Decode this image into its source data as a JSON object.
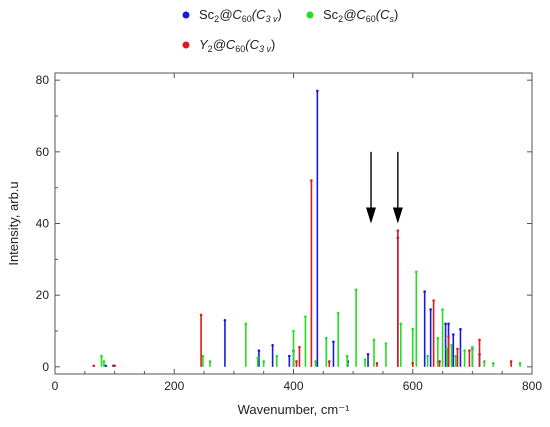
{
  "chart_data": {
    "type": "bar",
    "subtype": "stick-spectrum",
    "xlabel": "Wavenumber, cm⁻¹",
    "ylabel": "Intensity, arb.u",
    "xlim": [
      0,
      800
    ],
    "ylim": [
      -2,
      82
    ],
    "xticks": [
      0,
      200,
      400,
      600,
      800
    ],
    "yticks": [
      0,
      20,
      40,
      60,
      80
    ],
    "grid": false,
    "legend_position": "top",
    "legend": [
      {
        "base": "Sc",
        "sub1": "2",
        "mid": "@C",
        "sub2": "60",
        "open": "(C",
        "sub3": "3 v",
        "close": ")",
        "color": "#1a1adb"
      },
      {
        "base": "Sc",
        "sub1": "2",
        "mid": "@C",
        "sub2": "60",
        "open": "(C",
        "sub3": "s",
        "close": ")",
        "color": "#22dd22"
      },
      {
        "base": "Y",
        "sub1": "2",
        "mid": "@C",
        "sub2": "60",
        "open": "(C",
        "sub3": "3 v",
        "close": ")",
        "color": "#dd1a1a"
      }
    ],
    "annotations": [
      {
        "type": "arrow-down",
        "x": 530,
        "y_top": 60,
        "y_bottom": 40
      },
      {
        "type": "arrow-down",
        "x": 575,
        "y_top": 60,
        "y_bottom": 40
      }
    ],
    "series": [
      {
        "name": "Sc2@C60(C3v)",
        "color": "#1a1adb",
        "x": [
          85,
          98,
          285,
          342,
          365,
          393,
          400,
          440,
          467,
          491,
          525,
          575,
          620,
          630,
          655,
          660,
          668,
          680,
          700,
          712
        ],
        "y": [
          0.3,
          0.3,
          13,
          4.5,
          6,
          3,
          4.5,
          77,
          7,
          1.5,
          3.5,
          36,
          21,
          16,
          12,
          12,
          9,
          10.5,
          5,
          3.5
        ]
      },
      {
        "name": "Sc2@C60(Cs)",
        "color": "#22dd22",
        "x": [
          78,
          82,
          248,
          260,
          320,
          340,
          350,
          372,
          400,
          420,
          437,
          455,
          475,
          490,
          505,
          520,
          535,
          555,
          580,
          600,
          606,
          625,
          642,
          650,
          657,
          665,
          672,
          687,
          700,
          720,
          735,
          780
        ],
        "y": [
          3,
          1.5,
          3,
          1.5,
          12,
          2.5,
          1.5,
          3,
          10,
          14,
          1.5,
          8,
          15,
          3,
          21.5,
          2,
          7.5,
          6.5,
          12,
          10.5,
          26.5,
          3,
          8,
          16,
          5,
          6,
          3,
          4.5,
          5.5,
          1.5,
          1,
          1
        ]
      },
      {
        "name": "Y2@C60(C3v)",
        "color": "#dd1a1a",
        "x": [
          65,
          100,
          245,
          405,
          410,
          430,
          460,
          540,
          575,
          600,
          635,
          645,
          660,
          675,
          695,
          712,
          765
        ],
        "y": [
          0.3,
          0.3,
          14.5,
          1.5,
          5.5,
          52,
          1.5,
          1,
          38,
          1,
          18.5,
          1.5,
          8.5,
          5,
          4.5,
          7.5,
          1.5
        ]
      }
    ]
  }
}
